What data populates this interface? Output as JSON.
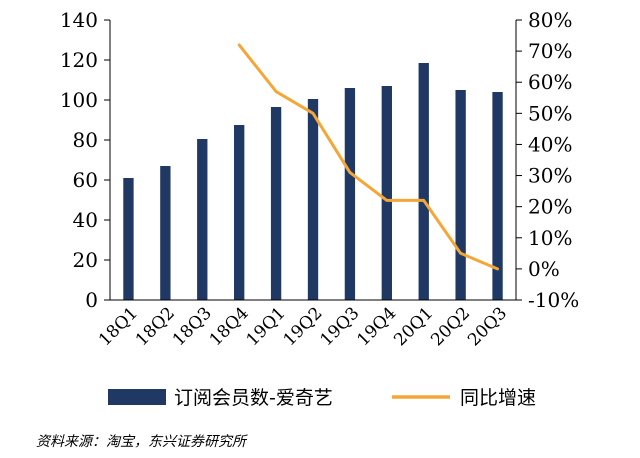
{
  "chart_data": {
    "type": "bar",
    "categories": [
      "18Q1",
      "18Q2",
      "18Q3",
      "18Q4",
      "19Q1",
      "19Q2",
      "19Q3",
      "19Q4",
      "20Q1",
      "20Q2",
      "20Q3"
    ],
    "series": [
      {
        "name": "订阅会员数-爱奇艺",
        "type": "bar",
        "axis": "left",
        "color": "#1f3864",
        "values": [
          61,
          67,
          80.5,
          87.5,
          96.5,
          100.5,
          106,
          107,
          118.5,
          105,
          104
        ]
      },
      {
        "name": "同比增速",
        "type": "line",
        "axis": "right",
        "color": "#f4a636",
        "values": [
          null,
          null,
          null,
          72,
          57,
          50,
          31,
          22,
          22,
          5,
          0
        ]
      }
    ],
    "left_axis": {
      "ylim": [
        0,
        140
      ],
      "ticks": [
        "0",
        "20",
        "40",
        "60",
        "80",
        "100",
        "120",
        "140"
      ]
    },
    "right_axis": {
      "ylim": [
        -10,
        80
      ],
      "ticks": [
        "-10%",
        "0%",
        "10%",
        "20%",
        "30%",
        "40%",
        "50%",
        "60%",
        "70%",
        "80%"
      ]
    },
    "grid": false,
    "legend_position": "bottom",
    "source": "资料来源：淘宝，东兴证券研究所"
  }
}
